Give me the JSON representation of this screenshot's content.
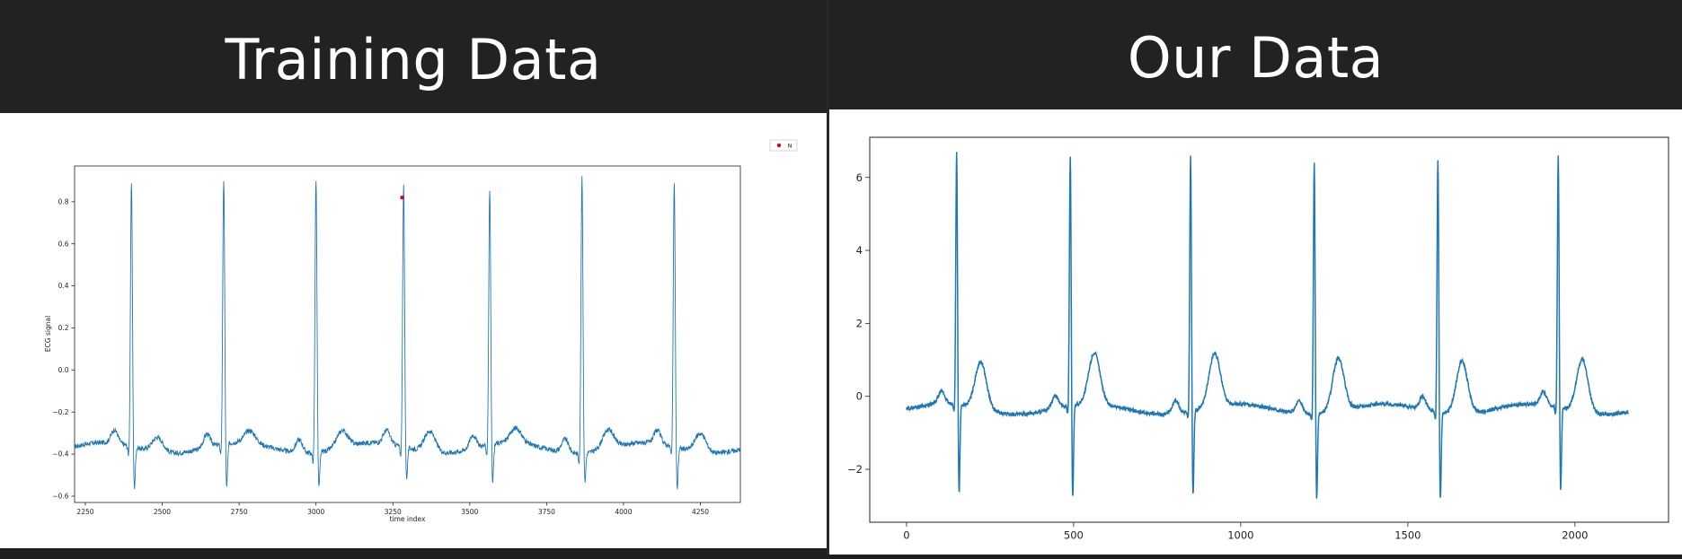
{
  "panels": {
    "left": {
      "title": "Training Data"
    },
    "right": {
      "title": "Our Data"
    }
  },
  "colors": {
    "line": "#1f77b4",
    "marker": "#e8000b",
    "background": "#ffffff",
    "header": "#222222"
  },
  "chart_data": [
    {
      "type": "line",
      "title": "",
      "xlabel": "time index",
      "ylabel": "ECG signal",
      "xlim": [
        2215,
        4380
      ],
      "ylim": [
        -0.63,
        0.97
      ],
      "xticks": [
        2250,
        2500,
        2750,
        3000,
        3250,
        3500,
        3750,
        4000,
        4250
      ],
      "xtick_labels": [
        "2250",
        "2500",
        "2750",
        "3000",
        "3250",
        "3500",
        "3750",
        "4000",
        "4250"
      ],
      "yticks": [
        -0.6,
        -0.4,
        -0.2,
        0.0,
        0.2,
        0.4,
        0.6,
        0.8
      ],
      "ytick_labels": [
        "−0.6",
        "−0.4",
        "−0.2",
        "0.0",
        "0.2",
        "0.4",
        "0.6",
        "0.8"
      ],
      "grid": false,
      "legend": {
        "placement": "outside-top-right",
        "entries": [
          "N"
        ]
      },
      "baseline": -0.37,
      "noise": 0.012,
      "beats": [
        {
          "r_x": 2400,
          "r_peak": 0.89,
          "s_depth": -0.58,
          "t_height": -0.3
        },
        {
          "r_x": 2700,
          "r_peak": 0.89,
          "s_depth": -0.59,
          "t_height": -0.31
        },
        {
          "r_x": 3000,
          "r_peak": 0.93,
          "s_depth": -0.55,
          "t_height": -0.29
        },
        {
          "r_x": 3285,
          "r_peak": 0.87,
          "s_depth": -0.53,
          "t_height": -0.27
        },
        {
          "r_x": 3565,
          "r_peak": 0.84,
          "s_depth": -0.56,
          "t_height": -0.3
        },
        {
          "r_x": 3865,
          "r_peak": 0.94,
          "s_depth": -0.52,
          "t_height": -0.28
        },
        {
          "r_x": 4165,
          "r_peak": 0.89,
          "s_depth": -0.58,
          "t_height": -0.28
        }
      ],
      "annotations": [
        {
          "label": "N",
          "x": 3280,
          "y": 0.82
        }
      ]
    },
    {
      "type": "line",
      "title": "",
      "xlabel": "",
      "ylabel": "",
      "xlim": [
        -110,
        2280
      ],
      "ylim": [
        -3.45,
        7.1
      ],
      "xticks": [
        0,
        500,
        1000,
        1500,
        2000
      ],
      "xtick_labels": [
        "0",
        "500",
        "1000",
        "1500",
        "2000"
      ],
      "yticks": [
        -2,
        0,
        2,
        4,
        6
      ],
      "ytick_labels": [
        "−2",
        "0",
        "2",
        "4",
        "6"
      ],
      "grid": false,
      "legend": null,
      "x_start": 0,
      "x_end": 2160,
      "baseline": -0.35,
      "noise": 0.05,
      "beats": [
        {
          "r_x": 150,
          "r_peak": 6.65,
          "s_depth": -2.9,
          "t_height": 0.95
        },
        {
          "r_x": 490,
          "r_peak": 6.6,
          "s_depth": -3.0,
          "t_height": 1.05
        },
        {
          "r_x": 850,
          "r_peak": 6.7,
          "s_depth": -2.8,
          "t_height": 1.1
        },
        {
          "r_x": 1220,
          "r_peak": 6.6,
          "s_depth": -2.85,
          "t_height": 1.1
        },
        {
          "r_x": 1590,
          "r_peak": 6.7,
          "s_depth": -2.9,
          "t_height": 1.1
        },
        {
          "r_x": 1950,
          "r_peak": 6.6,
          "s_depth": -2.75,
          "t_height": 1.1
        }
      ],
      "annotations": []
    }
  ]
}
